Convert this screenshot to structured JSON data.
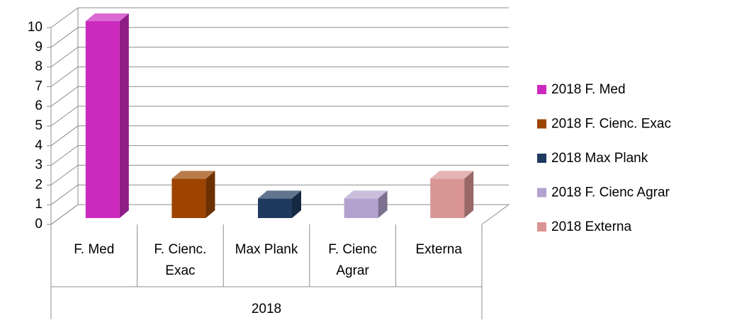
{
  "chart_data": {
    "type": "bar3d",
    "categories": [
      "F. Med",
      "F. Cienc. Exac",
      "Max Plank",
      "F. Cienc Agrar",
      "Externa"
    ],
    "group": "2018",
    "series": [
      {
        "name": "2018 F. Med",
        "color": "#cc29bf",
        "values": [
          10,
          null,
          null,
          null,
          null
        ]
      },
      {
        "name": "2018 F. Cienc. Exac",
        "color": "#9c4400",
        "values": [
          null,
          2,
          null,
          null,
          null
        ]
      },
      {
        "name": "2018 Max Plank",
        "color": "#1f3a5f",
        "values": [
          null,
          null,
          1,
          null,
          null
        ]
      },
      {
        "name": "2018 F. Cienc Agrar",
        "color": "#b3a2cf",
        "values": [
          null,
          null,
          null,
          1,
          null
        ]
      },
      {
        "name": "2018 Externa",
        "color": "#d99594",
        "values": [
          null,
          null,
          null,
          null,
          2
        ]
      }
    ],
    "ylim": [
      0,
      10
    ],
    "yticks": [
      0,
      1,
      2,
      3,
      4,
      5,
      6,
      7,
      8,
      9,
      10
    ],
    "grid": true,
    "legend": "right"
  }
}
